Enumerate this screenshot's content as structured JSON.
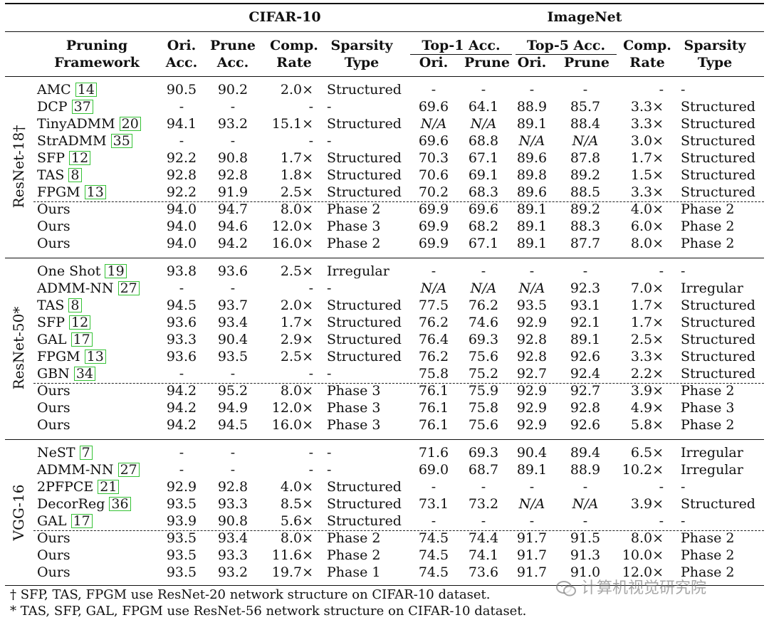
{
  "header": {
    "cifar": "CIFAR-10",
    "imagenet": "ImageNet",
    "pruning": "Pruning",
    "framework": "Framework",
    "ori": "Ori.",
    "acc": "Acc.",
    "prune": "Prune",
    "comp": "Comp.",
    "rate": "Rate",
    "sparsity": "Sparsity",
    "type": "Type",
    "top1": "Top-1 Acc.",
    "top5": "Top-5 Acc.",
    "sub_ori": "Ori.",
    "sub_prune": "Prune",
    "sub_ori2": "Ori.",
    "sub_prune2": "Prune",
    "comp2": "Comp.",
    "rate2": "Rate",
    "sparsity2": "Sparsity",
    "type2": "Type"
  },
  "groups": [
    {
      "model": "ResNet-18†",
      "rows": [
        {
          "name": "AMC",
          "ref": "14",
          "c_ori": "90.5",
          "c_prune": "90.2",
          "c_rate": "2.0×",
          "c_type": "Structured",
          "i1_ori": "-",
          "i1_prune": "-",
          "i5_ori": "-",
          "i5_prune": "-",
          "i_rate": "-",
          "i_type": "-"
        },
        {
          "name": "DCP",
          "ref": "37",
          "c_ori": "-",
          "c_prune": "-",
          "c_rate": "-",
          "c_type": "-",
          "i1_ori": "69.6",
          "i1_prune": "64.1",
          "i5_ori": "88.9",
          "i5_prune": "85.7",
          "i_rate": "3.3×",
          "i_type": "Structured"
        },
        {
          "name": "TinyADMM",
          "ref": "20",
          "c_ori": "94.1",
          "c_prune": "93.2",
          "c_rate": "15.1×",
          "c_type": "Structured",
          "i1_ori": "N/A",
          "i1_prune": "N/A",
          "i5_ori": "89.1",
          "i5_prune": "88.4",
          "i_rate": "3.3×",
          "i_type": "Structured"
        },
        {
          "name": "StrADMM",
          "ref": "35",
          "c_ori": "-",
          "c_prune": "-",
          "c_rate": "-",
          "c_type": "-",
          "i1_ori": "69.6",
          "i1_prune": "68.8",
          "i5_ori": "N/A",
          "i5_prune": "N/A",
          "i_rate": "3.0×",
          "i_type": "Structured"
        },
        {
          "name": "SFP",
          "ref": "12",
          "c_ori": "92.2",
          "c_prune": "90.8",
          "c_rate": "1.7×",
          "c_type": "Structured",
          "i1_ori": "70.3",
          "i1_prune": "67.1",
          "i5_ori": "89.6",
          "i5_prune": "87.8",
          "i_rate": "1.7×",
          "i_type": "Structured"
        },
        {
          "name": "TAS",
          "ref": "8",
          "c_ori": "92.8",
          "c_prune": "92.8",
          "c_rate": "1.8×",
          "c_type": "Structured",
          "i1_ori": "70.6",
          "i1_prune": "69.1",
          "i5_ori": "89.8",
          "i5_prune": "89.2",
          "i_rate": "1.5×",
          "i_type": "Structured"
        },
        {
          "name": "FPGM",
          "ref": "13",
          "c_ori": "92.2",
          "c_prune": "91.9",
          "c_rate": "2.5×",
          "c_type": "Structured",
          "i1_ori": "70.2",
          "i1_prune": "68.3",
          "i5_ori": "89.6",
          "i5_prune": "88.5",
          "i_rate": "3.3×",
          "i_type": "Structured"
        },
        {
          "name": "Ours",
          "ref": "",
          "c_ori": "94.0",
          "c_prune": "94.7",
          "c_rate": "8.0×",
          "c_type": "Phase 2",
          "i1_ori": "69.9",
          "i1_prune": "69.6",
          "i5_ori": "89.1",
          "i5_prune": "89.2",
          "i_rate": "4.0×",
          "i_type": "Phase 2"
        },
        {
          "name": "Ours",
          "ref": "",
          "c_ori": "94.0",
          "c_prune": "94.6",
          "c_rate": "12.0×",
          "c_type": "Phase 3",
          "i1_ori": "69.9",
          "i1_prune": "68.2",
          "i5_ori": "89.1",
          "i5_prune": "88.3",
          "i_rate": "6.0×",
          "i_type": "Phase 2"
        },
        {
          "name": "Ours",
          "ref": "",
          "c_ori": "94.0",
          "c_prune": "94.2",
          "c_rate": "16.0×",
          "c_type": "Phase 2",
          "i1_ori": "69.9",
          "i1_prune": "67.1",
          "i5_ori": "89.1",
          "i5_prune": "87.7",
          "i_rate": "8.0×",
          "i_type": "Phase 2"
        }
      ]
    },
    {
      "model": "ResNet-50*",
      "rows": [
        {
          "name": "One Shot",
          "ref": "19",
          "c_ori": "93.8",
          "c_prune": "93.6",
          "c_rate": "2.5×",
          "c_type": "Irregular",
          "i1_ori": "-",
          "i1_prune": "-",
          "i5_ori": "-",
          "i5_prune": "-",
          "i_rate": "-",
          "i_type": "-"
        },
        {
          "name": "ADMM-NN",
          "ref": "27",
          "c_ori": "-",
          "c_prune": "-",
          "c_rate": "-",
          "c_type": "-",
          "i1_ori": "N/A",
          "i1_prune": "N/A",
          "i5_ori": "N/A",
          "i5_prune": "92.3",
          "i_rate": "7.0×",
          "i_type": "Irregular"
        },
        {
          "name": "TAS",
          "ref": "8",
          "c_ori": "94.5",
          "c_prune": "93.7",
          "c_rate": "2.0×",
          "c_type": "Structured",
          "i1_ori": "77.5",
          "i1_prune": "76.2",
          "i5_ori": "93.5",
          "i5_prune": "93.1",
          "i_rate": "1.7×",
          "i_type": "Structured"
        },
        {
          "name": "SFP",
          "ref": "12",
          "c_ori": "93.6",
          "c_prune": "93.4",
          "c_rate": "1.7×",
          "c_type": "Structured",
          "i1_ori": "76.2",
          "i1_prune": "74.6",
          "i5_ori": "92.9",
          "i5_prune": "92.1",
          "i_rate": "1.7×",
          "i_type": "Structured"
        },
        {
          "name": "GAL",
          "ref": "17",
          "c_ori": "93.3",
          "c_prune": "90.4",
          "c_rate": "2.9×",
          "c_type": "Structured",
          "i1_ori": "76.4",
          "i1_prune": "69.3",
          "i5_ori": "92.8",
          "i5_prune": "89.1",
          "i_rate": "2.5×",
          "i_type": "Structured"
        },
        {
          "name": "FPGM",
          "ref": "13",
          "c_ori": "93.6",
          "c_prune": "93.5",
          "c_rate": "2.5×",
          "c_type": "Structured",
          "i1_ori": "76.2",
          "i1_prune": "75.6",
          "i5_ori": "92.8",
          "i5_prune": "92.6",
          "i_rate": "3.3×",
          "i_type": "Structured"
        },
        {
          "name": "GBN",
          "ref": "34",
          "c_ori": "-",
          "c_prune": "-",
          "c_rate": "-",
          "c_type": "-",
          "i1_ori": "75.8",
          "i1_prune": "75.2",
          "i5_ori": "92.7",
          "i5_prune": "92.4",
          "i_rate": "2.2×",
          "i_type": "Structured"
        },
        {
          "name": "Ours",
          "ref": "",
          "c_ori": "94.2",
          "c_prune": "95.2",
          "c_rate": "8.0×",
          "c_type": "Phase 3",
          "i1_ori": "76.1",
          "i1_prune": "75.9",
          "i5_ori": "92.9",
          "i5_prune": "92.7",
          "i_rate": "3.9×",
          "i_type": "Phase 2"
        },
        {
          "name": "Ours",
          "ref": "",
          "c_ori": "94.2",
          "c_prune": "94.9",
          "c_rate": "12.0×",
          "c_type": "Phase 3",
          "i1_ori": "76.1",
          "i1_prune": "75.8",
          "i5_ori": "92.9",
          "i5_prune": "92.8",
          "i_rate": "4.9×",
          "i_type": "Phase 3"
        },
        {
          "name": "Ours",
          "ref": "",
          "c_ori": "94.2",
          "c_prune": "94.5",
          "c_rate": "16.0×",
          "c_type": "Phase 3",
          "i1_ori": "76.1",
          "i1_prune": "75.6",
          "i5_ori": "92.9",
          "i5_prune": "92.6",
          "i_rate": "5.8×",
          "i_type": "Phase 2"
        }
      ]
    },
    {
      "model": "VGG-16",
      "rows": [
        {
          "name": "NeST",
          "ref": "7",
          "c_ori": "-",
          "c_prune": "-",
          "c_rate": "-",
          "c_type": "-",
          "i1_ori": "71.6",
          "i1_prune": "69.3",
          "i5_ori": "90.4",
          "i5_prune": "89.4",
          "i_rate": "6.5×",
          "i_type": "Irregular"
        },
        {
          "name": "ADMM-NN",
          "ref": "27",
          "c_ori": "-",
          "c_prune": "-",
          "c_rate": "-",
          "c_type": "-",
          "i1_ori": "69.0",
          "i1_prune": "68.7",
          "i5_ori": "89.1",
          "i5_prune": "88.9",
          "i_rate": "10.2×",
          "i_type": "Irregular"
        },
        {
          "name": "2PFPCE",
          "ref": "21",
          "c_ori": "92.9",
          "c_prune": "92.8",
          "c_rate": "4.0×",
          "c_type": "Structured",
          "i1_ori": "-",
          "i1_prune": "-",
          "i5_ori": "-",
          "i5_prune": "-",
          "i_rate": "-",
          "i_type": "-"
        },
        {
          "name": "DecorReg",
          "ref": "36",
          "c_ori": "93.5",
          "c_prune": "93.3",
          "c_rate": "8.5×",
          "c_type": "Structured",
          "i1_ori": "73.1",
          "i1_prune": "73.2",
          "i5_ori": "N/A",
          "i5_prune": "N/A",
          "i_rate": "3.9×",
          "i_type": "Structured"
        },
        {
          "name": "GAL",
          "ref": "17",
          "c_ori": "93.9",
          "c_prune": "90.8",
          "c_rate": "5.6×",
          "c_type": "Structured",
          "i1_ori": "-",
          "i1_prune": "-",
          "i5_ori": "-",
          "i5_prune": "-",
          "i_rate": "-",
          "i_type": "-"
        },
        {
          "name": "Ours",
          "ref": "",
          "c_ori": "93.5",
          "c_prune": "93.4",
          "c_rate": "8.0×",
          "c_type": "Phase 2",
          "i1_ori": "74.5",
          "i1_prune": "74.4",
          "i5_ori": "91.7",
          "i5_prune": "91.5",
          "i_rate": "8.0×",
          "i_type": "Phase 2"
        },
        {
          "name": "Ours",
          "ref": "",
          "c_ori": "93.5",
          "c_prune": "93.3",
          "c_rate": "11.6×",
          "c_type": "Phase 2",
          "i1_ori": "74.5",
          "i1_prune": "74.1",
          "i5_ori": "91.7",
          "i5_prune": "91.3",
          "i_rate": "10.0×",
          "i_type": "Phase 2"
        },
        {
          "name": "Ours",
          "ref": "",
          "c_ori": "93.5",
          "c_prune": "93.2",
          "c_rate": "19.7×",
          "c_type": "Phase 1",
          "i1_ori": "74.5",
          "i1_prune": "73.6",
          "i5_ori": "91.7",
          "i5_prune": "91.0",
          "i_rate": "12.0×",
          "i_type": "Phase 2"
        }
      ]
    }
  ],
  "footnotes": [
    "† SFP, TAS, FPGM use ResNet-20 network structure on CIFAR-10 dataset.",
    "* TAS, SFP, GAL, FPGM use ResNet-56 network structure on CIFAR-10 dataset."
  ],
  "watermark": "计算机视觉研究院"
}
